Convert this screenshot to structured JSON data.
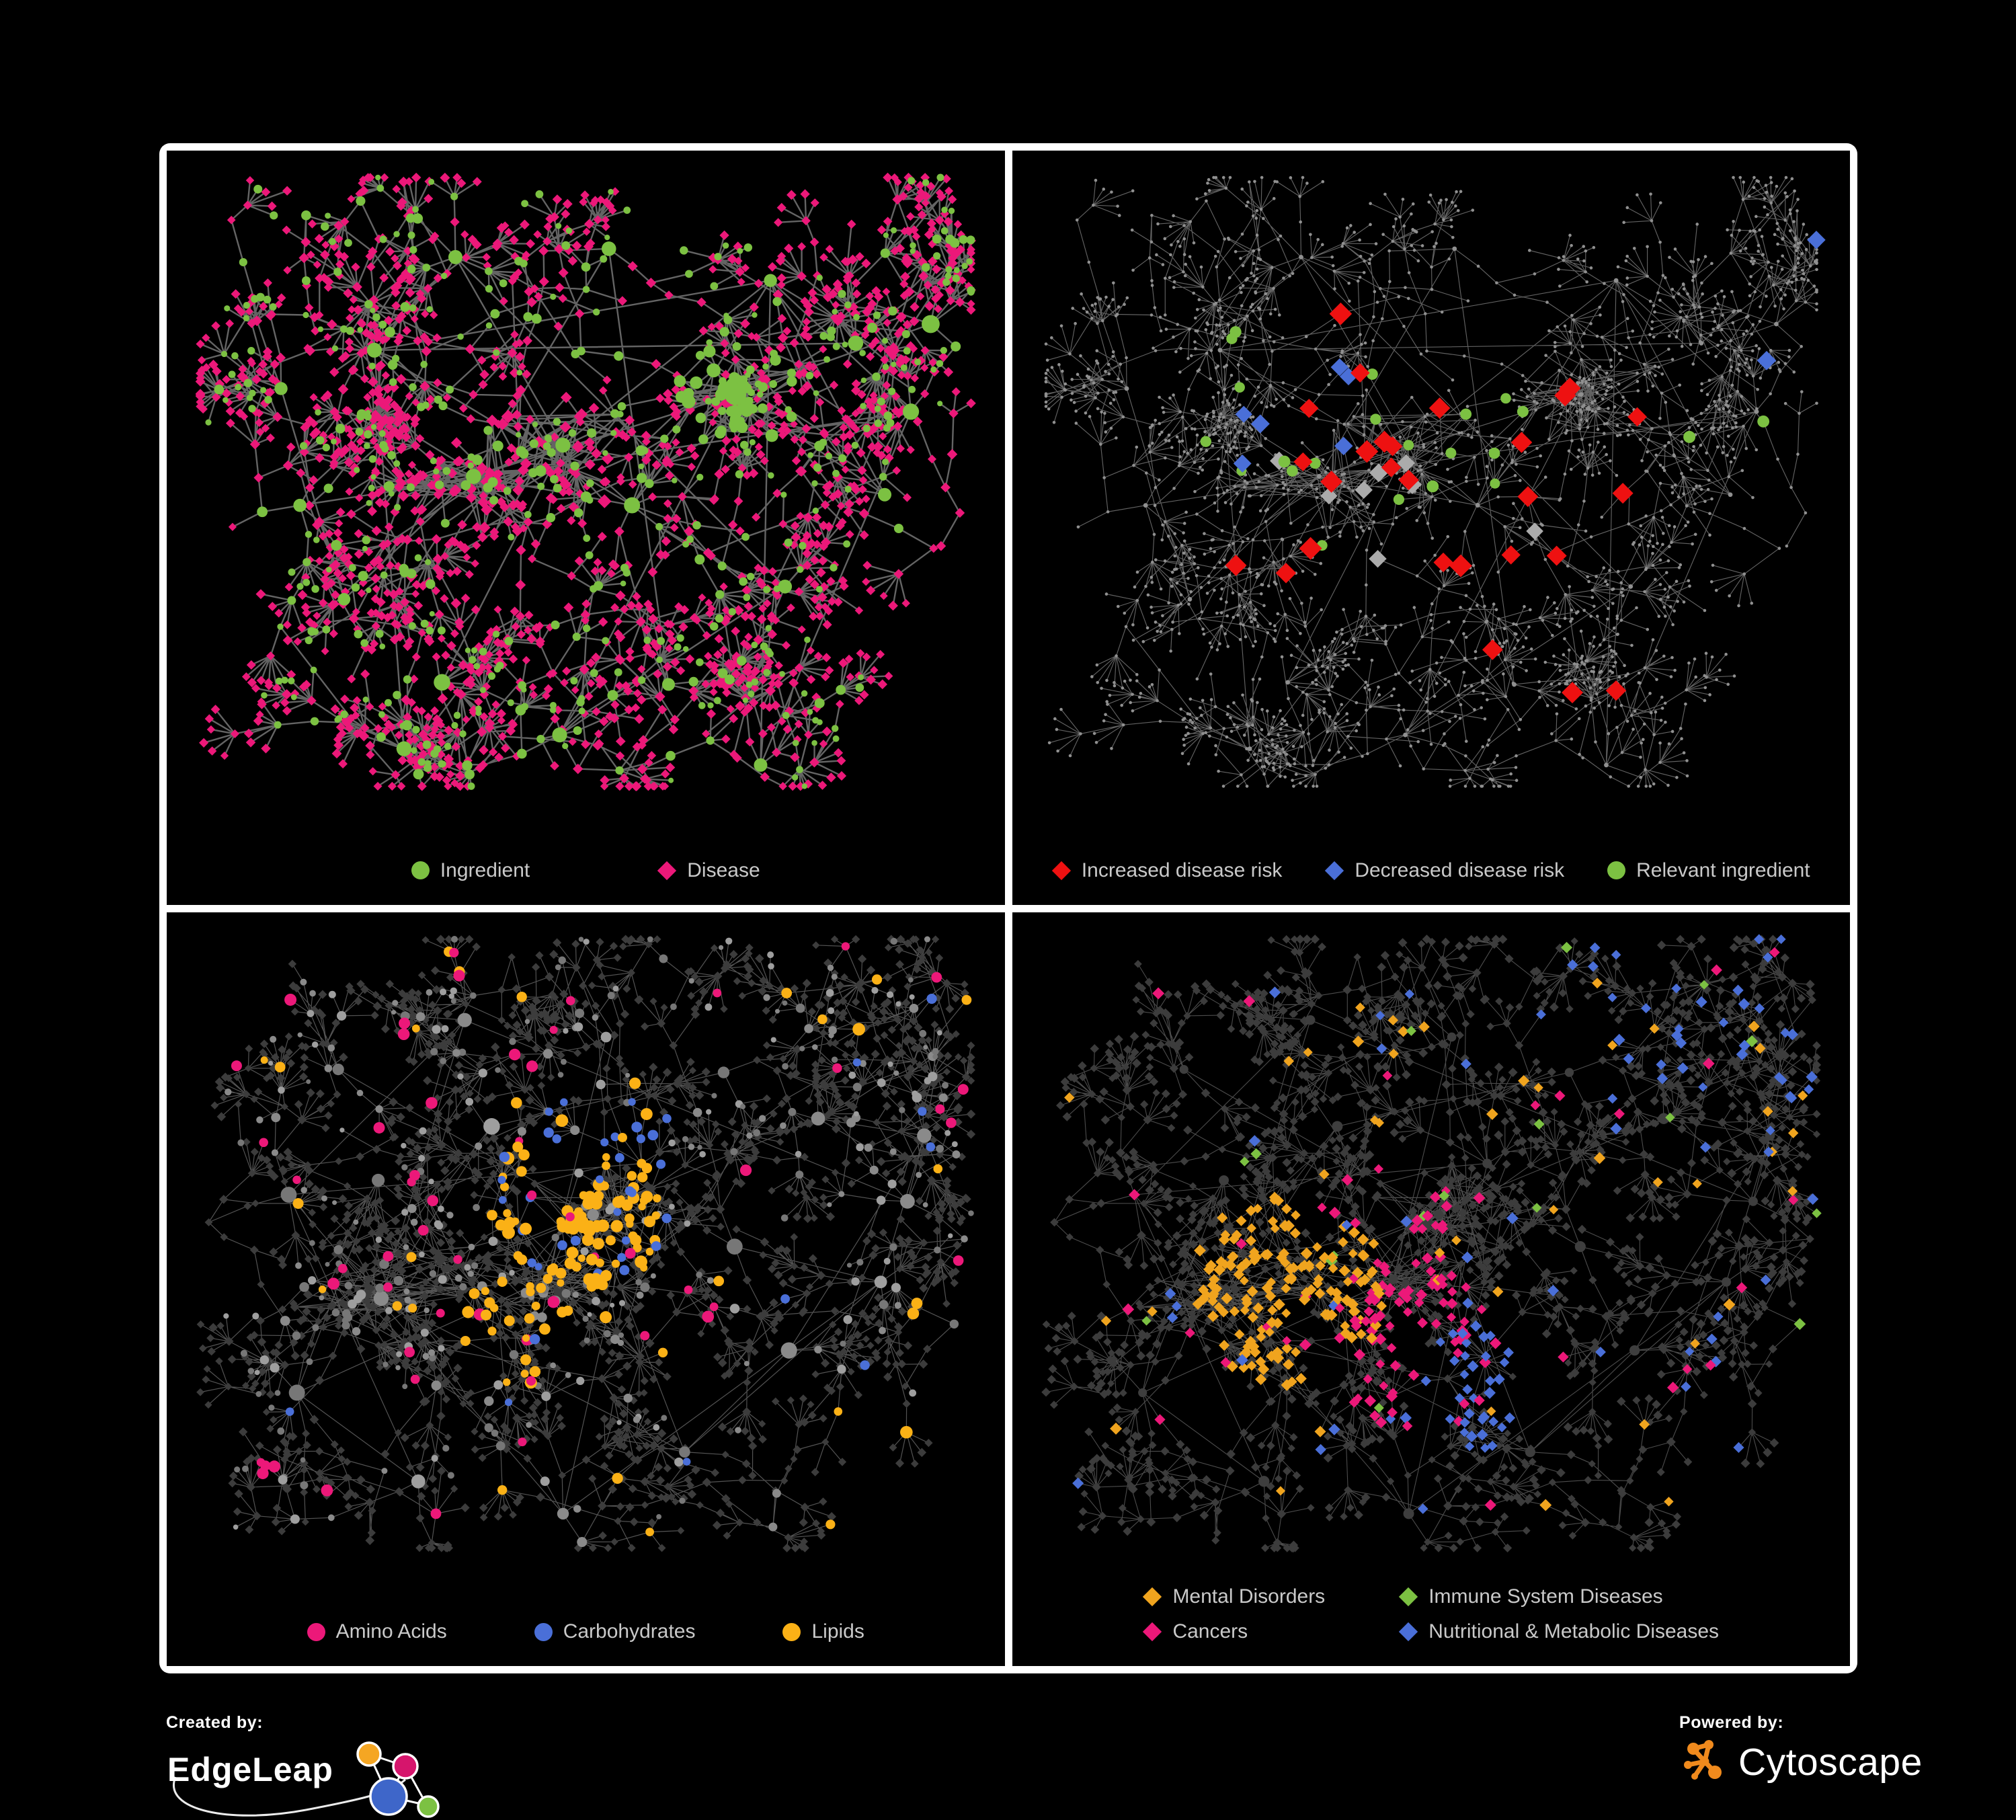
{
  "colors": {
    "background": "#000000",
    "panel_background": "#000000",
    "panel_border": "#FFFFFF",
    "legend_text": "#C9C9C9",
    "footer_text": "#FFFFFF",
    "green": "#7CC142",
    "magenta": "#EC1879",
    "red": "#EE1111",
    "blue": "#4A6FD8",
    "silver": "#ABABAB",
    "orange_lipids": "#FBB116",
    "orange_mental": "#F0A41E",
    "gray_node": "#909090",
    "dark_node": "#3C3C3C",
    "cytoscape_orange": "#F08A1D",
    "edgeleap_blue": "#3E66C9",
    "edgeleap_orange": "#F5A623",
    "edgeleap_magenta": "#D6156C",
    "edgeleap_green": "#7CC142"
  },
  "panels": [
    {
      "id": "ingredient-disease",
      "network": {
        "seed": 101,
        "variant": "top",
        "style": "ingredient-disease",
        "highlight_seed": 7
      },
      "legend": {
        "type": "row",
        "items": [
          {
            "label": "Ingredient",
            "marker": "circle",
            "color_key": "green"
          },
          {
            "label": "Disease",
            "marker": "diamond",
            "color_key": "magenta"
          }
        ]
      }
    },
    {
      "id": "disease-risk",
      "network": {
        "seed": 101,
        "variant": "top",
        "style": "risk-highlight",
        "highlight_seed": 77
      },
      "legend": {
        "type": "row",
        "items": [
          {
            "label": "Increased disease risk",
            "marker": "diamond",
            "color_key": "red"
          },
          {
            "label": "Decreased disease risk",
            "marker": "diamond",
            "color_key": "blue"
          },
          {
            "label": "Relevant ingredient",
            "marker": "circle",
            "color_key": "green"
          }
        ]
      }
    },
    {
      "id": "nutrient-classes",
      "network": {
        "seed": 202,
        "variant": "bottom",
        "style": "nutrient-classes",
        "highlight_seed": 33
      },
      "legend": {
        "type": "row",
        "items": [
          {
            "label": "Amino Acids",
            "marker": "circle",
            "color_key": "magenta"
          },
          {
            "label": "Carbohydrates",
            "marker": "circle",
            "color_key": "blue"
          },
          {
            "label": "Lipids",
            "marker": "circle",
            "color_key": "orange_lipids"
          }
        ]
      }
    },
    {
      "id": "disease-classes",
      "network": {
        "seed": 202,
        "variant": "bottom",
        "style": "disease-classes",
        "highlight_seed": 55
      },
      "legend": {
        "type": "grid",
        "items": [
          {
            "label": "Mental Disorders",
            "marker": "diamond",
            "color_key": "orange_mental"
          },
          {
            "label": "Immune System Diseases",
            "marker": "diamond",
            "color_key": "green"
          },
          {
            "label": "Cancers",
            "marker": "diamond",
            "color_key": "magenta"
          },
          {
            "label": "Nutritional & Metabolic Diseases",
            "marker": "diamond",
            "color_key": "blue"
          }
        ]
      }
    }
  ],
  "footer": {
    "created_by": {
      "label": "Created by:",
      "brand": "EdgeLeap"
    },
    "powered_by": {
      "label": "Powered by:",
      "brand": "Cytoscape"
    }
  }
}
